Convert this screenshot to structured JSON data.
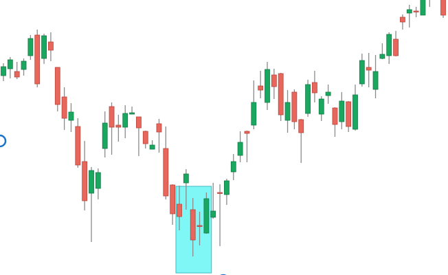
{
  "chart_data": {
    "type": "candlestick",
    "title": "",
    "xlabel": "",
    "ylabel": "",
    "grid": false,
    "axes_visible": false,
    "ylim": [
      0,
      400
    ],
    "candle_fields": [
      "open",
      "high",
      "low",
      "close"
    ],
    "candles": [
      [
        290,
        308,
        282,
        303
      ],
      [
        300,
        317,
        286,
        313
      ],
      [
        296,
        310,
        285,
        288
      ],
      [
        299,
        315,
        290,
        311
      ],
      [
        319,
        349,
        313,
        344
      ],
      [
        349,
        357,
        273,
        278
      ],
      [
        315,
        351,
        307,
        348
      ],
      [
        339,
        353,
        311,
        327
      ],
      [
        302,
        302,
        238,
        248
      ],
      [
        259,
        273,
        211,
        228
      ],
      [
        225,
        250,
        208,
        237
      ],
      [
        216,
        228,
        156,
        160
      ],
      [
        165,
        195,
        94,
        108
      ],
      [
        119,
        157,
        48,
        152
      ],
      [
        126,
        155,
        110,
        149
      ],
      [
        184,
        238,
        171,
        221
      ],
      [
        245,
        251,
        175,
        215
      ],
      [
        218,
        233,
        194,
        215
      ],
      [
        215,
        247,
        199,
        235
      ],
      [
        234,
        245,
        234,
        236
      ],
      [
        230,
        230,
        173,
        214
      ],
      [
        209,
        210,
        184,
        191
      ],
      [
        183,
        196,
        183,
        189
      ],
      [
        220,
        227,
        178,
        208
      ],
      [
        184,
        216,
        110,
        115
      ],
      [
        131,
        132,
        73,
        89
      ],
      [
        103,
        130,
        65,
        85
      ],
      [
        134,
        154,
        95,
        147
      ],
      [
        95,
        112,
        27,
        51
      ],
      [
        72,
        92,
        43,
        71
      ],
      [
        61,
        120,
        60,
        111
      ],
      [
        84,
        134,
        82,
        93
      ],
      [
        120,
        132,
        42,
        119
      ],
      [
        117,
        140,
        102,
        137
      ],
      [
        150,
        176,
        138,
        165
      ],
      [
        174,
        209,
        164,
        193
      ],
      [
        209,
        210,
        164,
        206
      ],
      [
        218,
        283,
        212,
        251
      ],
      [
        275,
        297,
        257,
        269
      ],
      [
        251,
        310,
        240,
        299
      ],
      [
        291,
        300,
        256,
        274
      ],
      [
        293,
        294,
        224,
        233
      ],
      [
        225,
        269,
        207,
        251
      ],
      [
        266,
        270,
        212,
        223
      ],
      [
        226,
        227,
        163,
        207
      ],
      [
        235,
        284,
        230,
        277
      ],
      [
        280,
        297,
        251,
        265
      ],
      [
        234,
        260,
        224,
        256
      ],
      [
        261,
        277,
        249,
        266
      ],
      [
        243,
        244,
        201,
        219
      ],
      [
        223,
        266,
        212,
        253
      ],
      [
        252,
        253,
        208,
        216
      ],
      [
        212,
        277,
        210,
        262
      ],
      [
        278,
        322,
        274,
        312
      ],
      [
        302,
        323,
        273,
        298
      ],
      [
        270,
        320,
        257,
        296
      ],
      [
        315,
        337,
        314,
        321
      ],
      [
        319,
        353,
        307,
        350
      ],
      [
        343,
        355,
        318,
        319
      ],
      [
        375,
        379,
        357,
        368
      ],
      [
        381,
        393,
        360,
        386
      ],
      [
        384,
        390,
        375,
        383
      ],
      [
        378,
        405,
        378,
        402
      ],
      [
        405,
        412,
        390,
        408
      ],
      null,
      [
        405,
        410,
        374,
        378
      ]
    ],
    "highlight": {
      "from_candle": 27,
      "to_candle": 32,
      "low": 3,
      "high": 129,
      "color": "#7ff7f7",
      "border": "#3fb8c4"
    },
    "markers": [
      {
        "candle": 0,
        "price": 195,
        "color": "#1a73c8"
      },
      {
        "candle": 33,
        "price": -8,
        "color": "#1a73c8"
      }
    ],
    "colors": {
      "up": "#1aa760",
      "down": "#e8675c",
      "up_border": "#137a45",
      "down_border": "#b8453d",
      "wick": "#8a8a8a"
    }
  }
}
